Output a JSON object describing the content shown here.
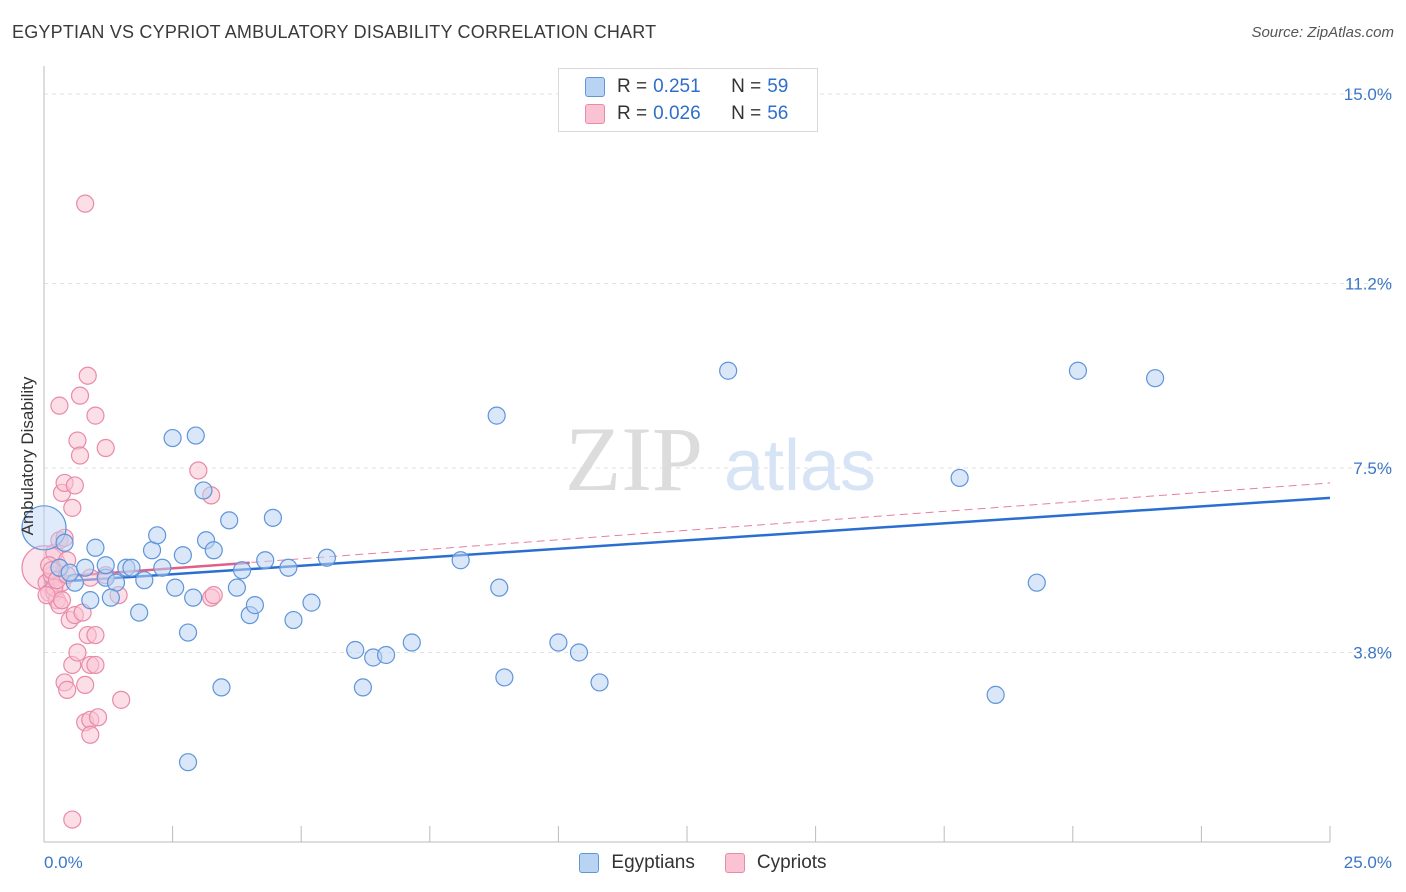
{
  "header": {
    "title": "EGYPTIAN VS CYPRIOT AMBULATORY DISABILITY CORRELATION CHART",
    "source": "Source: ZipAtlas.com"
  },
  "watermark": {
    "zip": "ZIP",
    "atlas": "atlas"
  },
  "legend": {
    "series": [
      {
        "r_label": "R =",
        "r_value": "0.251",
        "n_label": "N =",
        "n_value": "59"
      },
      {
        "r_label": "R =",
        "r_value": "0.026",
        "n_label": "N =",
        "n_value": "56"
      }
    ]
  },
  "bottom_legend": [
    "Egyptians",
    "Cypriots"
  ],
  "colors": {
    "egyptians_fill": "#b9d3f3",
    "egyptians_stroke": "#5f95db",
    "egyptians_line": "#2a6fd0",
    "cypriots_fill": "#f9c3d4",
    "cypriots_stroke": "#e98aa9",
    "cypriots_line": "#e0608a",
    "tick_label": "#3a76c6",
    "grid": "#e2e2e2"
  },
  "chart_data": {
    "type": "scatter",
    "title": "EGYPTIAN VS CYPRIOT AMBULATORY DISABILITY CORRELATION CHART",
    "ylabel": "Ambulatory Disability",
    "xlabel": "",
    "xlim": [
      0,
      25
    ],
    "ylim": [
      0,
      15.4
    ],
    "x_tick_labels": [
      "0.0%",
      "25.0%"
    ],
    "y_ticks": [
      3.8,
      7.5,
      11.2,
      15.0
    ],
    "y_tick_labels": [
      "3.8%",
      "7.5%",
      "11.2%",
      "15.0%"
    ],
    "grid": "horizontal dashed",
    "series": [
      {
        "name": "Egyptians",
        "r": 0.251,
        "n": 59,
        "trend": {
          "x": [
            0,
            25
          ],
          "y": [
            5.2,
            6.9
          ]
        },
        "points": [
          {
            "x": 0.0,
            "y": 6.3,
            "big": true
          },
          {
            "x": 0.4,
            "y": 6.0
          },
          {
            "x": 0.3,
            "y": 5.5
          },
          {
            "x": 0.6,
            "y": 5.2
          },
          {
            "x": 0.5,
            "y": 5.4
          },
          {
            "x": 0.8,
            "y": 5.5
          },
          {
            "x": 1.0,
            "y": 5.9
          },
          {
            "x": 1.2,
            "y": 5.3
          },
          {
            "x": 1.4,
            "y": 5.2
          },
          {
            "x": 1.3,
            "y": 4.9
          },
          {
            "x": 0.9,
            "y": 4.85
          },
          {
            "x": 1.6,
            "y": 5.5
          },
          {
            "x": 1.7,
            "y": 5.5
          },
          {
            "x": 1.95,
            "y": 5.25
          },
          {
            "x": 2.1,
            "y": 5.85
          },
          {
            "x": 2.2,
            "y": 6.15
          },
          {
            "x": 2.3,
            "y": 5.5
          },
          {
            "x": 2.55,
            "y": 5.1
          },
          {
            "x": 2.7,
            "y": 5.75
          },
          {
            "x": 2.8,
            "y": 4.2
          },
          {
            "x": 2.9,
            "y": 4.9
          },
          {
            "x": 2.5,
            "y": 8.1
          },
          {
            "x": 2.95,
            "y": 8.15
          },
          {
            "x": 3.1,
            "y": 7.05
          },
          {
            "x": 3.15,
            "y": 6.05
          },
          {
            "x": 3.3,
            "y": 5.85
          },
          {
            "x": 3.45,
            "y": 3.1
          },
          {
            "x": 3.6,
            "y": 6.45
          },
          {
            "x": 3.75,
            "y": 5.1
          },
          {
            "x": 3.85,
            "y": 5.45
          },
          {
            "x": 4.0,
            "y": 4.55
          },
          {
            "x": 4.1,
            "y": 4.75
          },
          {
            "x": 4.3,
            "y": 5.65
          },
          {
            "x": 4.45,
            "y": 6.5
          },
          {
            "x": 4.75,
            "y": 5.5
          },
          {
            "x": 4.85,
            "y": 4.45
          },
          {
            "x": 5.2,
            "y": 4.8
          },
          {
            "x": 5.5,
            "y": 5.7
          },
          {
            "x": 6.05,
            "y": 3.85
          },
          {
            "x": 6.2,
            "y": 3.1
          },
          {
            "x": 6.4,
            "y": 3.7
          },
          {
            "x": 6.65,
            "y": 3.75
          },
          {
            "x": 7.15,
            "y": 4.0
          },
          {
            "x": 2.8,
            "y": 1.6
          },
          {
            "x": 1.85,
            "y": 4.6
          },
          {
            "x": 8.1,
            "y": 5.65
          },
          {
            "x": 8.8,
            "y": 8.55
          },
          {
            "x": 8.85,
            "y": 5.1
          },
          {
            "x": 8.95,
            "y": 3.3
          },
          {
            "x": 10.0,
            "y": 4.0
          },
          {
            "x": 10.4,
            "y": 3.8
          },
          {
            "x": 10.8,
            "y": 3.2
          },
          {
            "x": 13.3,
            "y": 9.45
          },
          {
            "x": 17.8,
            "y": 7.3
          },
          {
            "x": 18.5,
            "y": 2.95
          },
          {
            "x": 19.3,
            "y": 5.2
          },
          {
            "x": 20.1,
            "y": 9.45
          },
          {
            "x": 21.6,
            "y": 9.3
          },
          {
            "x": 1.2,
            "y": 5.55
          }
        ]
      },
      {
        "name": "Cypriots",
        "r": 0.026,
        "n": 56,
        "trend": {
          "x": [
            0,
            4
          ],
          "y": [
            5.3,
            5.6
          ]
        },
        "trend_extended": {
          "x": [
            0,
            25
          ],
          "y": [
            5.3,
            7.2
          ]
        },
        "points": [
          {
            "x": 0.0,
            "y": 5.5,
            "big": true
          },
          {
            "x": 0.05,
            "y": 5.2
          },
          {
            "x": 0.1,
            "y": 5.0
          },
          {
            "x": 0.15,
            "y": 5.35
          },
          {
            "x": 0.2,
            "y": 5.0
          },
          {
            "x": 0.25,
            "y": 4.85
          },
          {
            "x": 0.3,
            "y": 4.75
          },
          {
            "x": 0.35,
            "y": 5.2
          },
          {
            "x": 0.2,
            "y": 5.8
          },
          {
            "x": 0.3,
            "y": 6.05
          },
          {
            "x": 0.4,
            "y": 6.1
          },
          {
            "x": 0.45,
            "y": 5.65
          },
          {
            "x": 0.35,
            "y": 7.0
          },
          {
            "x": 0.4,
            "y": 7.2
          },
          {
            "x": 0.55,
            "y": 6.7
          },
          {
            "x": 0.6,
            "y": 7.15
          },
          {
            "x": 0.3,
            "y": 8.75
          },
          {
            "x": 0.65,
            "y": 8.05
          },
          {
            "x": 0.7,
            "y": 7.75
          },
          {
            "x": 0.7,
            "y": 8.95
          },
          {
            "x": 0.85,
            "y": 9.35
          },
          {
            "x": 1.0,
            "y": 8.55
          },
          {
            "x": 1.2,
            "y": 7.9
          },
          {
            "x": 0.8,
            "y": 12.8
          },
          {
            "x": 0.5,
            "y": 4.45
          },
          {
            "x": 0.6,
            "y": 4.55
          },
          {
            "x": 0.75,
            "y": 4.6
          },
          {
            "x": 0.85,
            "y": 4.15
          },
          {
            "x": 1.0,
            "y": 4.15
          },
          {
            "x": 0.55,
            "y": 3.55
          },
          {
            "x": 0.65,
            "y": 3.8
          },
          {
            "x": 0.9,
            "y": 3.55
          },
          {
            "x": 1.0,
            "y": 3.55
          },
          {
            "x": 0.4,
            "y": 3.2
          },
          {
            "x": 0.45,
            "y": 3.05
          },
          {
            "x": 0.8,
            "y": 3.15
          },
          {
            "x": 0.8,
            "y": 2.4
          },
          {
            "x": 0.9,
            "y": 2.45
          },
          {
            "x": 1.05,
            "y": 2.5
          },
          {
            "x": 0.9,
            "y": 2.15
          },
          {
            "x": 1.5,
            "y": 2.85
          },
          {
            "x": 1.45,
            "y": 4.95
          },
          {
            "x": 1.2,
            "y": 5.35
          },
          {
            "x": 0.9,
            "y": 5.3
          },
          {
            "x": 3.0,
            "y": 7.45
          },
          {
            "x": 3.25,
            "y": 6.95
          },
          {
            "x": 3.25,
            "y": 4.9
          },
          {
            "x": 3.3,
            "y": 4.95
          },
          {
            "x": 0.55,
            "y": 0.45
          },
          {
            "x": 0.1,
            "y": 5.55
          },
          {
            "x": 0.15,
            "y": 5.45
          },
          {
            "x": 0.2,
            "y": 5.1
          },
          {
            "x": 0.25,
            "y": 5.25
          },
          {
            "x": 0.05,
            "y": 4.95
          },
          {
            "x": 0.35,
            "y": 4.85
          },
          {
            "x": 0.45,
            "y": 5.35
          }
        ]
      }
    ]
  }
}
